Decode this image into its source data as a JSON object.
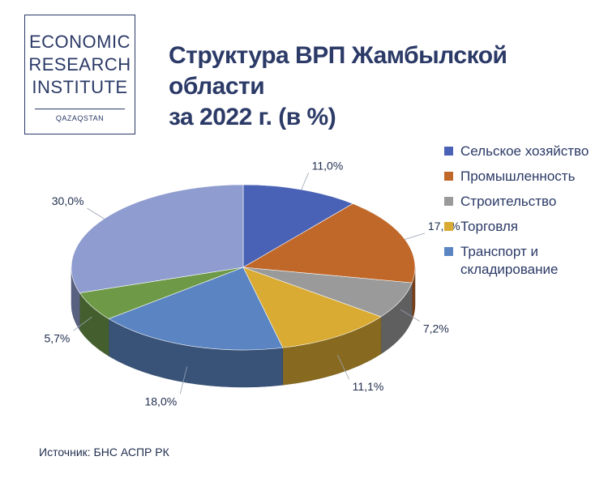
{
  "logo": {
    "line1": "ECONOMIC",
    "line2": "RESEARCH",
    "line3": "INSTITUTE",
    "sub": "QAZAQSTAN"
  },
  "title_line1": "Структура ВРП Жамбылской области",
  "title_line2": "за 2022 г. (в %)",
  "source": "Источник: БНС АСПР РК",
  "chart_data": {
    "type": "pie",
    "style": "3d",
    "title": "Структура ВРП Жамбылской области за 2022 г. (в %)",
    "legend_position": "right",
    "slices": [
      {
        "name": "Сельское хозяйство",
        "value": 11.0,
        "label": "11,0%",
        "color": "#4a62b5"
      },
      {
        "name": "Промышленность",
        "value": 17.0,
        "label": "17,0%",
        "color": "#c0682a"
      },
      {
        "name": "Строительство",
        "value": 7.2,
        "label": "7,2%",
        "color": "#9a9a9a"
      },
      {
        "name": "Торговля",
        "value": 11.1,
        "label": "11,1%",
        "color": "#d9ab33"
      },
      {
        "name": "Транспорт и складирование",
        "value": 18.0,
        "label": "18,0%",
        "color": "#5b85c2"
      },
      {
        "name": "",
        "value": 5.7,
        "label": "5,7%",
        "color": "#6e9a48"
      },
      {
        "name": "",
        "value": 30.0,
        "label": "30,0%",
        "color": "#8f9ccf"
      }
    ],
    "legend": [
      {
        "line1": "Сельское хозяйство",
        "line2": "",
        "color": "#4a62b5"
      },
      {
        "line1": "Промышленность",
        "line2": "",
        "color": "#c0682a"
      },
      {
        "line1": "Строительство",
        "line2": "",
        "color": "#9a9a9a"
      },
      {
        "line1": "Торговля",
        "line2": "",
        "color": "#d9ab33"
      },
      {
        "line1": "Транспорт и",
        "line2": "складирование",
        "color": "#5b85c2"
      }
    ]
  }
}
